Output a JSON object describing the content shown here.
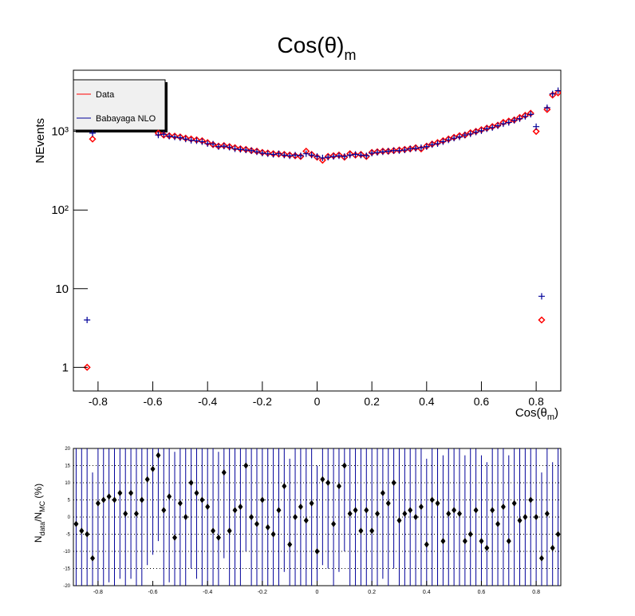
{
  "chart_data": [
    {
      "type": "scatter",
      "title": "Cos(θ)",
      "title_sub": "m",
      "x_label": "Cos(θ",
      "x_label_sub": "m",
      "x_label_end": ")",
      "y_label": "NEvents",
      "log_y": true,
      "legend": "top-left",
      "xlim": [
        -0.89,
        0.89
      ],
      "xticks": [
        -0.8,
        -0.6,
        -0.4,
        -0.2,
        0,
        0.2,
        0.4,
        0.6,
        0.8
      ],
      "ylim": [
        0.5,
        6000
      ],
      "yticks": [
        1,
        10,
        {
          "value": 100,
          "label": "10²"
        },
        {
          "value": 1000,
          "label": "10³"
        }
      ],
      "x": [
        -0.84,
        -0.82,
        -0.58,
        -0.56,
        -0.54,
        -0.52,
        -0.5,
        -0.48,
        -0.46,
        -0.44,
        -0.42,
        -0.4,
        -0.38,
        -0.36,
        -0.34,
        -0.32,
        -0.3,
        -0.28,
        -0.26,
        -0.24,
        -0.22,
        -0.2,
        -0.18,
        -0.16,
        -0.14,
        -0.12,
        -0.1,
        -0.08,
        -0.06,
        -0.04,
        -0.02,
        0,
        0.02,
        0.04,
        0.06,
        0.08,
        0.1,
        0.12,
        0.14,
        0.16,
        0.18,
        0.2,
        0.22,
        0.24,
        0.26,
        0.28,
        0.3,
        0.32,
        0.34,
        0.36,
        0.38,
        0.4,
        0.42,
        0.44,
        0.46,
        0.48,
        0.5,
        0.52,
        0.54,
        0.56,
        0.58,
        0.6,
        0.62,
        0.64,
        0.66,
        0.68,
        0.7,
        0.72,
        0.74,
        0.76,
        0.78,
        0.8,
        0.82,
        0.84,
        0.86,
        0.88
      ],
      "series": [
        {
          "name": "Data",
          "color": "#ff0000",
          "values": [
            1,
            800,
            950,
            900,
            880,
            870,
            850,
            820,
            800,
            780,
            760,
            720,
            680,
            650,
            660,
            640,
            620,
            600,
            590,
            570,
            560,
            540,
            530,
            520,
            515,
            510,
            500,
            490,
            480,
            560,
            510,
            470,
            430,
            480,
            490,
            500,
            470,
            520,
            500,
            510,
            480,
            540,
            550,
            560,
            560,
            570,
            580,
            590,
            600,
            620,
            600,
            650,
            690,
            720,
            760,
            800,
            840,
            880,
            900,
            960,
            1000,
            1050,
            1100,
            1150,
            1200,
            1300,
            1350,
            1400,
            1500,
            1600,
            1700,
            1000,
            4,
            1900,
            2900,
            3100
          ]
        },
        {
          "name": "Babayaga NLO",
          "color": "#000099",
          "values": [
            4,
            950,
            900,
            920,
            870,
            850,
            830,
            800,
            770,
            760,
            740,
            700,
            690,
            640,
            650,
            630,
            600,
            590,
            580,
            570,
            550,
            530,
            520,
            510,
            520,
            500,
            490,
            500,
            490,
            520,
            500,
            480,
            460,
            470,
            480,
            490,
            480,
            500,
            510,
            500,
            490,
            530,
            540,
            550,
            560,
            570,
            570,
            580,
            600,
            610,
            620,
            640,
            680,
            700,
            740,
            780,
            820,
            850,
            900,
            930,
            980,
            1020,
            1080,
            1120,
            1180,
            1250,
            1300,
            1380,
            1450,
            1550,
            1650,
            1150,
            8,
            2000,
            3000,
            3300
          ]
        }
      ]
    },
    {
      "type": "ratio",
      "y_label": "N",
      "y_label_sub1": "data",
      "y_label_mid": "/N",
      "y_label_sub2": "MC",
      "y_label_end": " (%)",
      "xlim": [
        -0.89,
        0.89
      ],
      "xticks": [
        -0.8,
        -0.6,
        -0.4,
        -0.2,
        0,
        0.2,
        0.4,
        0.6,
        0.8
      ],
      "ylim": [
        -20,
        20
      ],
      "yticks": [
        -20,
        -15,
        -10,
        -5,
        0,
        5,
        10,
        15,
        20
      ],
      "grid": true,
      "marker_color": "#000000",
      "error_color": "#000099",
      "x": [
        -0.88,
        -0.86,
        -0.84,
        -0.82,
        -0.8,
        -0.78,
        -0.76,
        -0.74,
        -0.72,
        -0.7,
        -0.68,
        -0.66,
        -0.64,
        -0.62,
        -0.6,
        -0.58,
        -0.56,
        -0.54,
        -0.52,
        -0.5,
        -0.48,
        -0.46,
        -0.44,
        -0.42,
        -0.4,
        -0.38,
        -0.36,
        -0.34,
        -0.32,
        -0.3,
        -0.28,
        -0.26,
        -0.24,
        -0.22,
        -0.2,
        -0.18,
        -0.16,
        -0.14,
        -0.12,
        -0.1,
        -0.08,
        -0.06,
        -0.04,
        -0.02,
        0,
        0.02,
        0.04,
        0.06,
        0.08,
        0.1,
        0.12,
        0.14,
        0.16,
        0.18,
        0.2,
        0.22,
        0.24,
        0.26,
        0.28,
        0.3,
        0.32,
        0.34,
        0.36,
        0.38,
        0.4,
        0.42,
        0.44,
        0.46,
        0.48,
        0.5,
        0.52,
        0.54,
        0.56,
        0.58,
        0.6,
        0.62,
        0.64,
        0.66,
        0.68,
        0.7,
        0.72,
        0.74,
        0.76,
        0.78,
        0.8,
        0.82,
        0.84,
        0.86,
        0.88
      ],
      "values": [
        -2,
        -4,
        -5,
        -12,
        4,
        5,
        6,
        5,
        7,
        1,
        7,
        1,
        5,
        11,
        14,
        18,
        2,
        6,
        -6,
        4,
        0,
        10,
        7,
        5,
        3,
        -4,
        -6,
        13,
        -4,
        2,
        3,
        15,
        0,
        -2,
        5,
        -3,
        -5,
        2,
        9,
        -8,
        0,
        3,
        -1,
        4,
        -10,
        11,
        10,
        -2,
        9,
        15,
        1,
        2,
        -4,
        2,
        -4,
        1,
        7,
        4,
        10,
        -1,
        1,
        2,
        0,
        3,
        -8,
        5,
        4,
        -7,
        1,
        2,
        1,
        -7,
        -5,
        2,
        -7,
        -9,
        2,
        -2,
        3,
        -7,
        4,
        -1,
        0,
        5,
        0,
        -12,
        1,
        -9,
        -5
      ],
      "errors": [
        25,
        25,
        25,
        25,
        25,
        25,
        25,
        25,
        25,
        25,
        25,
        25,
        25,
        25,
        25,
        25,
        25,
        25,
        25,
        25,
        25,
        25,
        25,
        25,
        25,
        25,
        25,
        25,
        25,
        25,
        25,
        25,
        25,
        25,
        25,
        25,
        25,
        25,
        25,
        25,
        25,
        25,
        25,
        25,
        25,
        25,
        25,
        25,
        25,
        25,
        25,
        25,
        25,
        25,
        25,
        25,
        25,
        25,
        25,
        25,
        25,
        25,
        25,
        25,
        25,
        25,
        25,
        25,
        25,
        25,
        25,
        25,
        25,
        25,
        25,
        25,
        25,
        25,
        25,
        25,
        25,
        25,
        25,
        25,
        25,
        25,
        25,
        25,
        25
      ]
    }
  ]
}
